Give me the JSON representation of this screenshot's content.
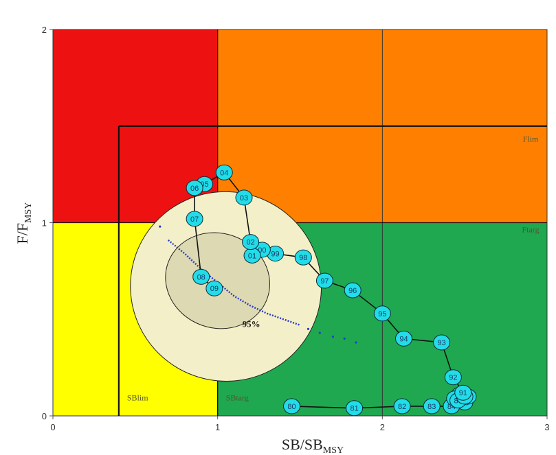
{
  "chart_data": {
    "type": "scatter",
    "xlabel": "SB/SB",
    "xlabel_sub": "MSY",
    "ylabel": "F/F",
    "ylabel_sub": "MSY",
    "xlim": [
      0,
      3
    ],
    "ylim": [
      0,
      2
    ],
    "x_ticks": [
      {
        "v": 0,
        "label": "0"
      },
      {
        "v": 1,
        "label": "1"
      },
      {
        "v": 2,
        "label": "2"
      },
      {
        "v": 3,
        "label": "3"
      }
    ],
    "y_ticks": [
      {
        "v": 0,
        "label": "0"
      },
      {
        "v": 1,
        "label": "1"
      },
      {
        "v": 2,
        "label": "2"
      }
    ],
    "grid": true,
    "reference_lines": {
      "SBlim": 0.4,
      "SBtarg": 1.0,
      "Flim": 1.5,
      "Ftarg": 1.0
    },
    "zones": [
      {
        "name": "red",
        "x": [
          0,
          1
        ],
        "y": [
          1,
          2
        ],
        "color": "#ee1111"
      },
      {
        "name": "orange",
        "x": [
          1,
          3
        ],
        "y": [
          1,
          2
        ],
        "color": "#ff8000"
      },
      {
        "name": "yellow",
        "x": [
          0,
          1
        ],
        "y": [
          0,
          1
        ],
        "color": "#ffff00"
      },
      {
        "name": "green",
        "x": [
          1,
          3
        ],
        "y": [
          0,
          1
        ],
        "color": "#1fa84f"
      }
    ],
    "zone_labels": [
      {
        "text": "SBlim",
        "x": 0.45,
        "y": 0.08
      },
      {
        "text": "SBtarg",
        "x": 1.05,
        "y": 0.08
      },
      {
        "text": "Flim",
        "x": 2.9,
        "y": 1.42
      },
      {
        "text": "Ftarg",
        "x": 2.9,
        "y": 0.95
      }
    ],
    "confidence_label": {
      "text": "95%",
      "x": 1.15,
      "y": 0.46
    },
    "series": [
      {
        "points": [
          {
            "label": "80",
            "x": 1.45,
            "y": 0.05
          },
          {
            "label": "81",
            "x": 1.83,
            "y": 0.04
          },
          {
            "label": "82",
            "x": 2.12,
            "y": 0.05
          },
          {
            "label": "83",
            "x": 2.3,
            "y": 0.05
          },
          {
            "label": "84",
            "x": 2.42,
            "y": 0.05
          },
          {
            "label": "85",
            "x": 2.5,
            "y": 0.07
          },
          {
            "label": "86",
            "x": 2.52,
            "y": 0.1
          },
          {
            "label": "87",
            "x": 2.47,
            "y": 0.11
          },
          {
            "label": "88",
            "x": 2.44,
            "y": 0.09
          },
          {
            "label": "89",
            "x": 2.46,
            "y": 0.08
          },
          {
            "label": "90",
            "x": 2.5,
            "y": 0.1
          },
          {
            "label": "91",
            "x": 2.49,
            "y": 0.12
          },
          {
            "label": "92",
            "x": 2.43,
            "y": 0.2
          },
          {
            "label": "93",
            "x": 2.36,
            "y": 0.38
          },
          {
            "label": "94",
            "x": 2.13,
            "y": 0.4
          },
          {
            "label": "95",
            "x": 2.0,
            "y": 0.53
          },
          {
            "label": "96",
            "x": 1.82,
            "y": 0.65
          },
          {
            "label": "97",
            "x": 1.65,
            "y": 0.7
          },
          {
            "label": "98",
            "x": 1.52,
            "y": 0.82
          },
          {
            "label": "99",
            "x": 1.35,
            "y": 0.84
          },
          {
            "label": "00",
            "x": 1.27,
            "y": 0.86
          },
          {
            "label": "01",
            "x": 1.21,
            "y": 0.83
          },
          {
            "label": "02",
            "x": 1.2,
            "y": 0.9
          },
          {
            "label": "03",
            "x": 1.16,
            "y": 1.13
          },
          {
            "label": "04",
            "x": 1.04,
            "y": 1.26
          },
          {
            "label": "05",
            "x": 0.92,
            "y": 1.2
          },
          {
            "label": "06",
            "x": 0.86,
            "y": 1.18
          },
          {
            "label": "07",
            "x": 0.86,
            "y": 1.02
          },
          {
            "label": "08",
            "x": 0.9,
            "y": 0.72
          },
          {
            "label": "09",
            "x": 0.98,
            "y": 0.66
          }
        ]
      }
    ],
    "uncertainty": {
      "ellipse_95": {
        "cx": 1.05,
        "cy": 0.67,
        "rx": 0.58,
        "ry": 0.07,
        "angle_deg": 20,
        "color": "#f3efc8"
      },
      "ellipse_inner": {
        "cx": 1.0,
        "cy": 0.7,
        "rx": 0.32,
        "ry": 0.035,
        "angle_deg": 20,
        "color": "#ddd9b2"
      },
      "trace_color": "#2a3cc8",
      "trace": [
        [
          0.7,
          0.91
        ],
        [
          0.8,
          0.84
        ],
        [
          0.9,
          0.76
        ],
        [
          1.0,
          0.69
        ],
        [
          1.1,
          0.62
        ],
        [
          1.2,
          0.57
        ],
        [
          1.3,
          0.53
        ],
        [
          1.4,
          0.5
        ],
        [
          1.5,
          0.47
        ]
      ],
      "scatter": [
        [
          0.65,
          0.98
        ],
        [
          1.55,
          0.45
        ],
        [
          1.62,
          0.43
        ],
        [
          1.7,
          0.41
        ],
        [
          1.77,
          0.4
        ],
        [
          1.84,
          0.38
        ]
      ]
    },
    "point_color": "#22dde8",
    "path_color": "#111111"
  }
}
